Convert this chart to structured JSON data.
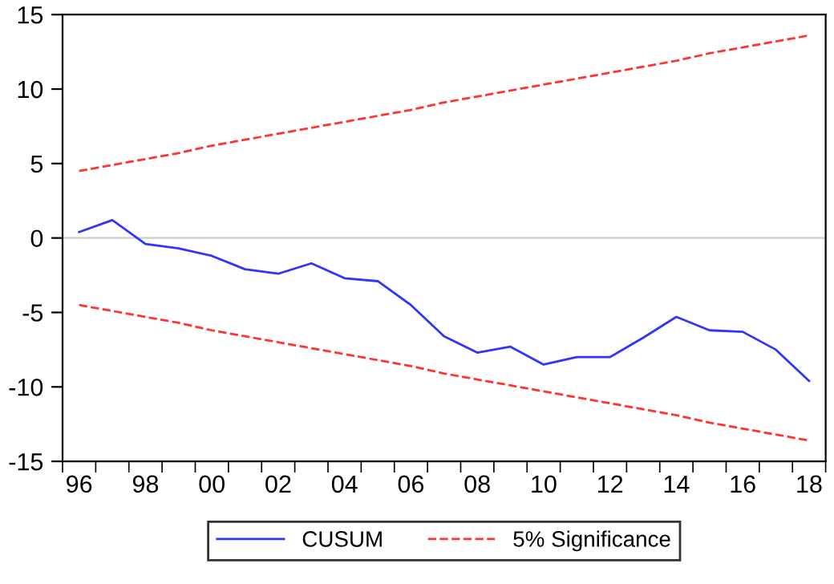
{
  "chart_data": {
    "type": "line",
    "categories": [
      "96",
      null,
      "98",
      null,
      "00",
      null,
      "02",
      null,
      "04",
      null,
      "06",
      null,
      "08",
      null,
      "10",
      null,
      "12",
      null,
      "14",
      null,
      "16",
      null,
      "18"
    ],
    "series": [
      {
        "name": "CUSUM",
        "color": "#3333ff",
        "line_style": "solid",
        "values": [
          0.4,
          1.2,
          -0.4,
          -0.7,
          -1.2,
          -2.1,
          -2.4,
          -1.7,
          -2.7,
          -2.9,
          -4.5,
          -6.6,
          -7.7,
          -7.3,
          -8.5,
          -8.0,
          -8.0,
          -6.7,
          -5.3,
          -6.2,
          -6.3,
          -7.5,
          -9.6
        ]
      },
      {
        "name": "5% Significance",
        "color": "#ff3333",
        "line_style": "dashed",
        "values": [
          4.5,
          4.9,
          5.3,
          5.7,
          6.2,
          6.6,
          7.0,
          7.4,
          7.8,
          8.2,
          8.6,
          9.1,
          9.5,
          9.9,
          10.3,
          10.7,
          11.1,
          11.5,
          11.9,
          12.4,
          12.8,
          13.2,
          13.6
        ]
      },
      {
        "color": "#ff3333",
        "line_style": "dashed",
        "values": [
          -4.5,
          -4.9,
          -5.3,
          -5.7,
          -6.2,
          -6.6,
          -7.0,
          -7.4,
          -7.8,
          -8.2,
          -8.6,
          -9.1,
          -9.5,
          -9.9,
          -10.3,
          -10.7,
          -11.1,
          -11.5,
          -11.9,
          -12.4,
          -12.8,
          -13.2,
          -13.6
        ]
      }
    ],
    "ylim": [
      -15,
      15
    ],
    "yticks": [
      -15,
      -10,
      -5,
      0,
      5,
      10,
      15
    ],
    "ref_lines": [
      {
        "axis": "y",
        "value": 0,
        "color": "#cccccc"
      }
    ],
    "grid": false,
    "legend": "bottom",
    "marker": "none"
  }
}
